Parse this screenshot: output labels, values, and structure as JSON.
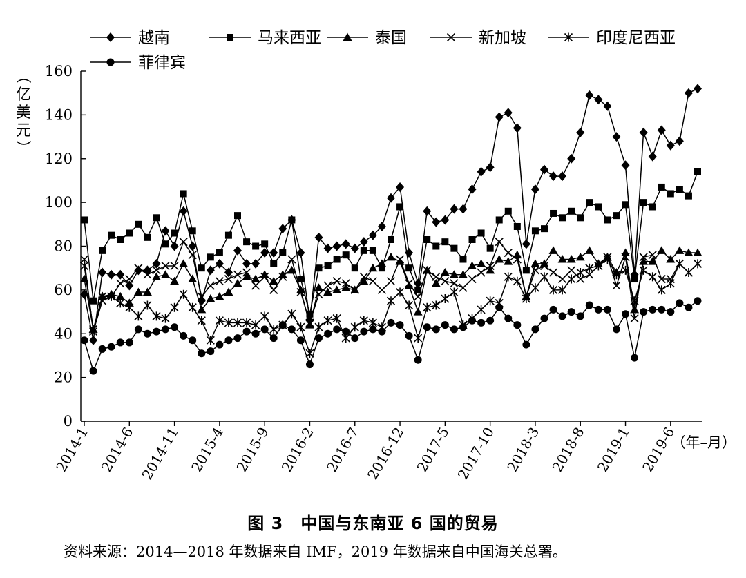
{
  "chart_data": {
    "type": "line",
    "title": "中国与东南亚 6 国的贸易",
    "figure_label": "图 3",
    "ylabel": "（亿美元）",
    "xlabel": "（年–月）",
    "ylim": [
      0,
      160
    ],
    "yticks": [
      0,
      20,
      40,
      60,
      80,
      100,
      120,
      140,
      160
    ],
    "x_ticks": [
      {
        "index": 0,
        "label": "2014-1"
      },
      {
        "index": 5,
        "label": "2014-6"
      },
      {
        "index": 10,
        "label": "2014-11"
      },
      {
        "index": 15,
        "label": "2015-4"
      },
      {
        "index": 20,
        "label": "2015-9"
      },
      {
        "index": 25,
        "label": "2016-2"
      },
      {
        "index": 30,
        "label": "2016-7"
      },
      {
        "index": 35,
        "label": "2016-12"
      },
      {
        "index": 40,
        "label": "2017-5"
      },
      {
        "index": 45,
        "label": "2017-10"
      },
      {
        "index": 50,
        "label": "2018-3"
      },
      {
        "index": 55,
        "label": "2018-8"
      },
      {
        "index": 60,
        "label": "2019-1"
      },
      {
        "index": 65,
        "label": "2019-6"
      }
    ],
    "n_points": 69,
    "series": [
      {
        "name": "越南",
        "marker": "diamond",
        "values": [
          58,
          37,
          68,
          67,
          67,
          62,
          69,
          69,
          72,
          87,
          80,
          96,
          80,
          55,
          69,
          72,
          68,
          78,
          72,
          72,
          77,
          77,
          88,
          92,
          77,
          46,
          84,
          79,
          80,
          81,
          79,
          82,
          85,
          89,
          102,
          107,
          77,
          63,
          96,
          91,
          92,
          97,
          97,
          106,
          114,
          116,
          139,
          141,
          134,
          81,
          106,
          115,
          112,
          112,
          120,
          132,
          149,
          147,
          144,
          130,
          117,
          67,
          132,
          121,
          133,
          126,
          128,
          150,
          152
        ]
      },
      {
        "name": "马来西亚",
        "marker": "square",
        "values": [
          92,
          55,
          78,
          85,
          83,
          86,
          90,
          84,
          93,
          81,
          86,
          104,
          87,
          70,
          75,
          77,
          85,
          94,
          82,
          80,
          81,
          72,
          77,
          92,
          65,
          49,
          70,
          71,
          74,
          76,
          70,
          78,
          78,
          70,
          83,
          98,
          70,
          60,
          83,
          80,
          82,
          79,
          74,
          83,
          86,
          79,
          92,
          96,
          89,
          69,
          87,
          88,
          95,
          93,
          96,
          93,
          100,
          98,
          92,
          94,
          99,
          65,
          100,
          98,
          107,
          104,
          106,
          103,
          114
        ]
      },
      {
        "name": "泰国",
        "marker": "triangle",
        "values": [
          65,
          42,
          57,
          58,
          57,
          54,
          59,
          59,
          66,
          67,
          64,
          72,
          65,
          51,
          56,
          57,
          59,
          63,
          66,
          65,
          67,
          64,
          67,
          69,
          60,
          44,
          61,
          59,
          60,
          61,
          60,
          64,
          70,
          72,
          75,
          73,
          62,
          50,
          69,
          63,
          68,
          67,
          67,
          71,
          72,
          69,
          74,
          73,
          76,
          57,
          72,
          72,
          78,
          74,
          74,
          75,
          78,
          72,
          75,
          68,
          77,
          51,
          73,
          73,
          78,
          74,
          78,
          77,
          77
        ]
      },
      {
        "name": "新加坡",
        "marker": "x",
        "values": [
          74,
          41,
          55,
          57,
          63,
          65,
          70,
          67,
          69,
          71,
          71,
          82,
          76,
          57,
          62,
          64,
          65,
          67,
          68,
          62,
          66,
          60,
          66,
          74,
          59,
          45,
          58,
          62,
          64,
          63,
          60,
          66,
          64,
          60,
          64,
          74,
          63,
          57,
          69,
          66,
          64,
          63,
          61,
          65,
          68,
          71,
          82,
          77,
          74,
          57,
          69,
          71,
          68,
          65,
          69,
          65,
          67,
          71,
          75,
          62,
          75,
          47,
          75,
          76,
          65,
          65,
          72,
          68,
          72
        ]
      },
      {
        "name": "印度尼西亚",
        "marker": "asterisk",
        "values": [
          71,
          42,
          57,
          57,
          54,
          52,
          48,
          53,
          48,
          47,
          52,
          58,
          52,
          46,
          37,
          46,
          45,
          45,
          45,
          44,
          48,
          42,
          44,
          49,
          43,
          31,
          43,
          46,
          47,
          38,
          43,
          46,
          45,
          43,
          55,
          59,
          53,
          38,
          52,
          53,
          56,
          59,
          44,
          47,
          51,
          55,
          54,
          66,
          64,
          56,
          61,
          66,
          60,
          60,
          65,
          68,
          70,
          71,
          74,
          67,
          69,
          55,
          69,
          66,
          60,
          63,
          72,
          68,
          72
        ]
      },
      {
        "name": "菲律宾",
        "marker": "circle",
        "values": [
          37,
          23,
          33,
          34,
          36,
          36,
          42,
          40,
          41,
          42,
          43,
          39,
          37,
          31,
          32,
          35,
          37,
          38,
          41,
          40,
          42,
          38,
          44,
          42,
          37,
          26,
          38,
          40,
          42,
          41,
          38,
          41,
          42,
          41,
          45,
          44,
          39,
          28,
          43,
          42,
          44,
          42,
          43,
          46,
          45,
          46,
          52,
          47,
          44,
          35,
          42,
          47,
          51,
          48,
          50,
          48,
          53,
          51,
          51,
          42,
          49,
          29,
          50,
          51,
          51,
          50,
          54,
          52,
          55
        ]
      }
    ]
  },
  "caption": {
    "title": "图 3　中国与东南亚 6 国的贸易",
    "source": "资料来源：2014—2018 年数据来自 IMF，2019 年数据来自中国海关总署。"
  }
}
